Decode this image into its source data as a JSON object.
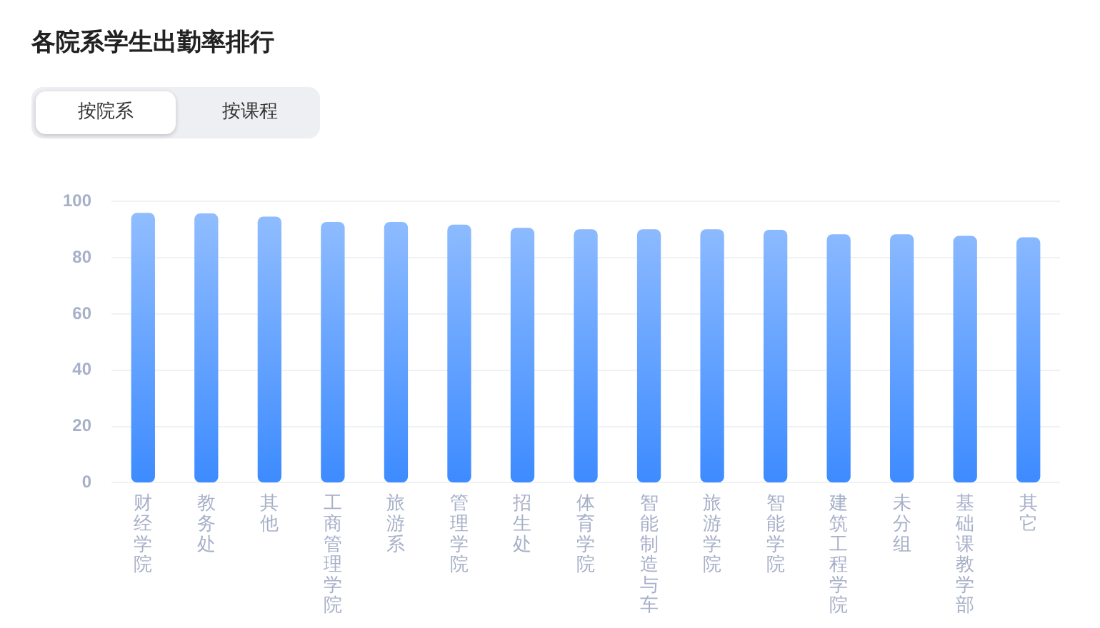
{
  "chart_data": {
    "type": "bar",
    "title": "各院系学生出勤率排行",
    "annotations": [
      "按院系",
      "按课程"
    ],
    "categories": [
      "财经学院",
      "教务处",
      "其他",
      "工商管理学院",
      "旅游系",
      "管理学院",
      "招生处",
      "体育学院",
      "智能制造与车",
      "旅游学院",
      "智能学院",
      "建筑工程学院",
      "未分组",
      "基础课教学部",
      "其它"
    ],
    "values": [
      95.8,
      95.6,
      94.5,
      92.6,
      92.6,
      91.6,
      90.5,
      90.0,
      90.0,
      90.0,
      89.8,
      88.2,
      88.2,
      87.6,
      87.1
    ],
    "color": "#3d8bff",
    "ylim": [
      0,
      100
    ],
    "yticks": [
      0,
      20,
      40,
      60,
      80,
      100
    ],
    "grid": "y",
    "legend": false
  }
}
